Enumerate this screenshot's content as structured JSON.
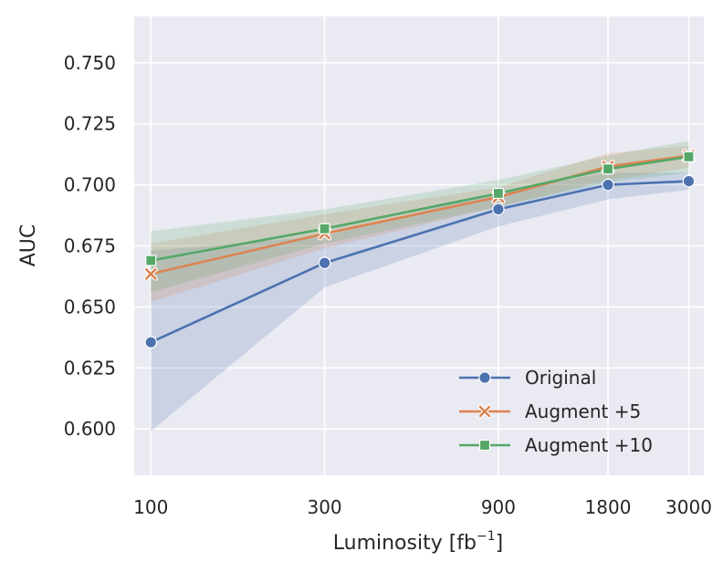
{
  "chart_data": {
    "type": "line",
    "xlabel": "Luminosity [fb",
    "xlabel_sup": "−1",
    "xlabel_end": "]",
    "ylabel": "AUC",
    "x": [
      100,
      300,
      900,
      1800,
      3000
    ],
    "x_tick_labels": [
      "100",
      "300",
      "900",
      "1800",
      "3000"
    ],
    "x_scale": "log",
    "xlim": [
      90,
      3300
    ],
    "ylim": [
      0.581,
      0.769
    ],
    "y_ticks": [
      0.6,
      0.625,
      0.65,
      0.675,
      0.7,
      0.725,
      0.75
    ],
    "y_tick_labels": [
      "0.600",
      "0.625",
      "0.650",
      "0.675",
      "0.700",
      "0.725",
      "0.750"
    ],
    "grid": true,
    "legend_position": "bottom-right",
    "background": "#eaeaf2",
    "series": [
      {
        "name": "Original",
        "marker": "circle",
        "color": "#4c72b0",
        "values": [
          0.6355,
          0.668,
          0.69,
          0.7,
          0.7015
        ],
        "ci_low": [
          0.599,
          0.658,
          0.683,
          0.694,
          0.698
        ],
        "ci_high": [
          0.673,
          0.679,
          0.697,
          0.705,
          0.705
        ]
      },
      {
        "name": "Augment +5",
        "marker": "x",
        "color": "#dd8452",
        "values": [
          0.6635,
          0.68,
          0.695,
          0.7075,
          0.712
        ],
        "ci_low": [
          0.652,
          0.674,
          0.691,
          0.702,
          0.707
        ],
        "ci_high": [
          0.676,
          0.688,
          0.699,
          0.713,
          0.716
        ]
      },
      {
        "name": "Augment +10",
        "marker": "square",
        "color": "#55a868",
        "values": [
          0.669,
          0.682,
          0.6965,
          0.7065,
          0.7115
        ],
        "ci_low": [
          0.656,
          0.676,
          0.691,
          0.701,
          0.705
        ],
        "ci_high": [
          0.681,
          0.69,
          0.702,
          0.712,
          0.718
        ]
      }
    ]
  }
}
